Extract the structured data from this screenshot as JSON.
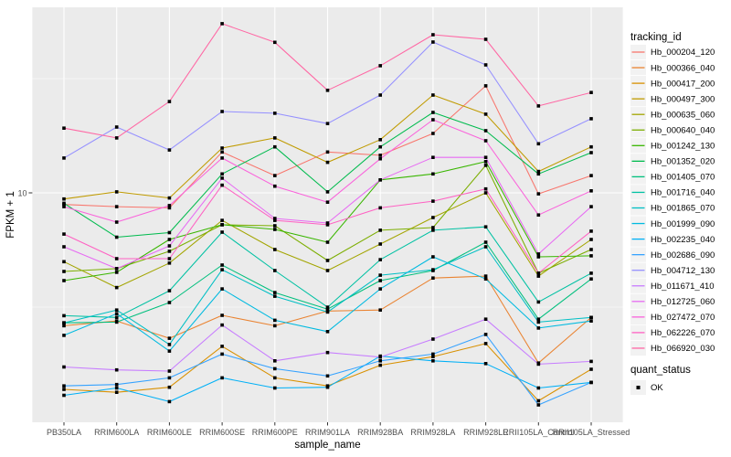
{
  "chart_data": {
    "type": "line",
    "title": "",
    "xlabel": "sample_name",
    "ylabel": "FPKM + 1",
    "legend_title": "tracking_id",
    "legend_position": "right",
    "y_scale": "log10",
    "y_ticks": [
      10
    ],
    "y_tick_label": "10",
    "y_minor_ticks": [
      3.1623,
      31.623
    ],
    "y_range_approx": [
      1.15,
      56
    ],
    "grid": true,
    "panel_bg": "#EBEBEB",
    "grid_color": "#FFFFFF",
    "tick_color": "#333333",
    "marker": "black-square",
    "marker_color": "#000000",
    "categories": [
      "PB350LA",
      "RRIM600LA",
      "RRIM600LE",
      "RRIM600SE",
      "RRIM600PE",
      "RRIM901LA",
      "RRIM928BA",
      "RRIM928LA",
      "RRIM928LE",
      "RRII105LA_Control",
      "RRII105LA_Stressed"
    ],
    "series": [
      {
        "name": "Hb_000204_120",
        "color": "#F8766D",
        "values": [
          8.9,
          8.7,
          8.6,
          15.1,
          11.9,
          15.1,
          14.6,
          18.2,
          29.4,
          9.9,
          11.9
        ]
      },
      {
        "name": "Hb_000366_040",
        "color": "#EA8331",
        "values": [
          2.62,
          2.75,
          2.31,
          2.91,
          2.62,
          3.04,
          3.07,
          4.24,
          4.32,
          1.8,
          2.85
        ]
      },
      {
        "name": "Hb_000417_200",
        "color": "#D89000",
        "values": [
          1.38,
          1.34,
          1.41,
          2.13,
          1.55,
          1.43,
          1.76,
          1.92,
          2.19,
          1.23,
          1.69
        ]
      },
      {
        "name": "Hb_000497_300",
        "color": "#C09B00",
        "values": [
          9.4,
          10.1,
          9.5,
          15.7,
          17.4,
          13.6,
          17.1,
          26.8,
          22.1,
          12.4,
          15.9
        ]
      },
      {
        "name": "Hb_000635_060",
        "color": "#A3A500",
        "values": [
          5.0,
          3.85,
          4.93,
          7.58,
          5.65,
          4.57,
          5.97,
          7.8,
          10.0,
          4.32,
          6.25
        ]
      },
      {
        "name": "Hb_000640_040",
        "color": "#7CAE00",
        "values": [
          4.53,
          4.66,
          5.55,
          7.25,
          7.18,
          5.06,
          6.86,
          7.05,
          13.2,
          4.45,
          5.65
        ]
      },
      {
        "name": "Hb_001242_130",
        "color": "#39B600",
        "values": [
          4.13,
          4.49,
          6.25,
          7.25,
          6.92,
          6.08,
          11.4,
          12.1,
          13.7,
          5.25,
          5.3
        ]
      },
      {
        "name": "Hb_001352_020",
        "color": "#00BB4E",
        "values": [
          9.0,
          6.4,
          6.7,
          12.1,
          15.9,
          10.1,
          15.9,
          22.5,
          18.7,
          12.1,
          15.0
        ]
      },
      {
        "name": "Hb_001405_070",
        "color": "#00BF7D",
        "values": [
          2.7,
          2.72,
          3.31,
          4.83,
          3.66,
          3.1,
          4.13,
          4.57,
          6.08,
          2.8,
          4.2
        ]
      },
      {
        "name": "Hb_001716_040",
        "color": "#00C1A3",
        "values": [
          2.9,
          2.85,
          3.73,
          6.73,
          4.57,
          3.16,
          5.1,
          6.86,
          7.1,
          3.33,
          4.45
        ]
      },
      {
        "name": "Hb_001865_070",
        "color": "#00BFC4",
        "values": [
          2.7,
          3.07,
          2.17,
          4.61,
          3.53,
          3.01,
          4.36,
          4.61,
          5.81,
          2.72,
          2.85
        ]
      },
      {
        "name": "Hb_001999_090",
        "color": "#00BAE0",
        "values": [
          2.38,
          2.96,
          2.03,
          3.8,
          2.77,
          2.47,
          3.8,
          5.25,
          4.2,
          2.56,
          2.75
        ]
      },
      {
        "name": "Hb_002235_040",
        "color": "#00B0F6",
        "values": [
          1.3,
          1.4,
          1.22,
          1.55,
          1.4,
          1.41,
          1.93,
          1.84,
          1.79,
          1.4,
          1.48
        ]
      },
      {
        "name": "Hb_002686_090",
        "color": "#35A2FF",
        "values": [
          1.43,
          1.45,
          1.55,
          1.97,
          1.7,
          1.58,
          1.84,
          1.97,
          2.4,
          1.18,
          1.48
        ]
      },
      {
        "name": "Hb_004712_130",
        "color": "#9590FF",
        "values": [
          14.2,
          19.4,
          15.4,
          22.7,
          22.3,
          20.1,
          26.8,
          45.7,
          36.3,
          16.4,
          21.1
        ]
      },
      {
        "name": "Hb_011671_410",
        "color": "#C77CFF",
        "values": [
          1.73,
          1.68,
          1.66,
          2.64,
          1.84,
          2.0,
          1.91,
          2.29,
          2.8,
          1.78,
          1.83
        ]
      },
      {
        "name": "Hb_012725_060",
        "color": "#E76BF3",
        "values": [
          5.81,
          4.66,
          5.86,
          11.6,
          7.73,
          7.38,
          11.4,
          14.3,
          14.3,
          5.4,
          8.7
        ]
      },
      {
        "name": "Hb_027472_070",
        "color": "#FA62DB",
        "values": [
          8.7,
          7.45,
          8.8,
          14.2,
          10.7,
          9.1,
          14.1,
          20.9,
          16.9,
          8.0,
          10.2
        ]
      },
      {
        "name": "Hb_062226_070",
        "color": "#FF61C3",
        "values": [
          6.6,
          5.15,
          5.15,
          10.8,
          7.58,
          7.25,
          8.6,
          9.2,
          10.4,
          4.45,
          6.8
        ]
      },
      {
        "name": "Hb_066920_030",
        "color": "#FF67A4",
        "values": [
          19.2,
          17.4,
          25.1,
          55.0,
          45.6,
          28.1,
          36.0,
          49.2,
          47.0,
          24.0,
          27.5
        ]
      }
    ],
    "quant_status": {
      "title": "quant_status",
      "items": [
        {
          "label": "OK",
          "marker": "black-square"
        }
      ]
    }
  }
}
